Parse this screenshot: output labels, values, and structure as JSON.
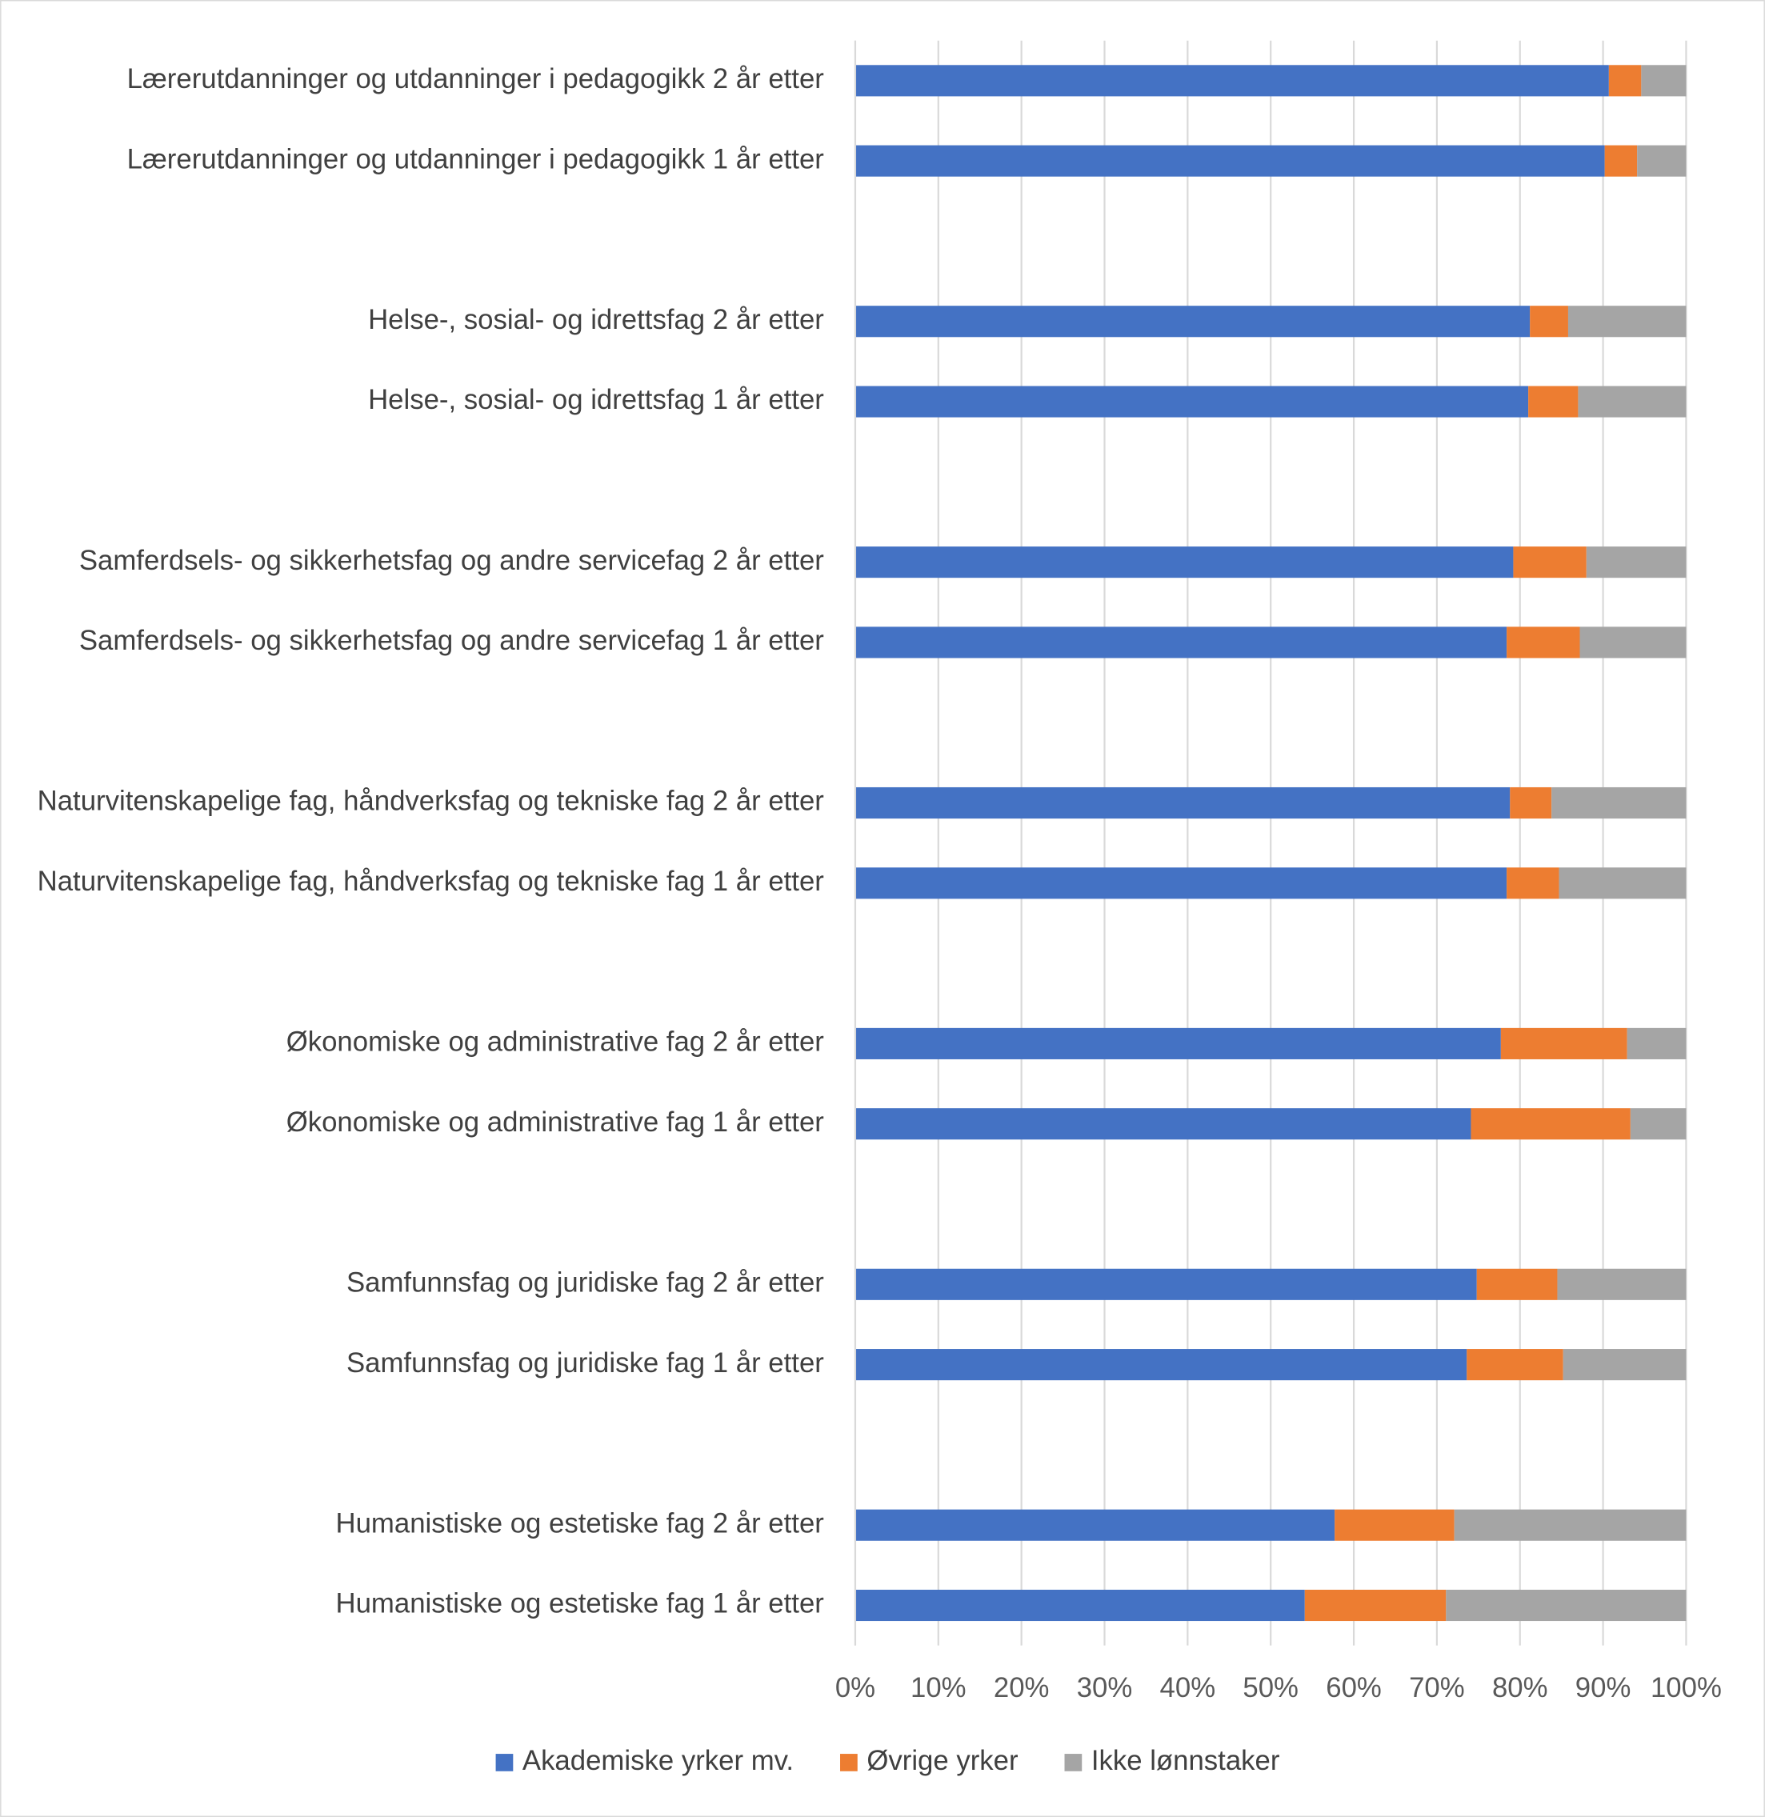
{
  "chart_data": {
    "type": "stacked-bar-horizontal",
    "categories": [
      "Lærerutdanninger og utdanninger i pedagogikk 2 år etter",
      "Lærerutdanninger og utdanninger i pedagogikk 1 år etter",
      null,
      "Helse-, sosial- og idrettsfag 2 år etter",
      "Helse-, sosial- og idrettsfag 1 år etter",
      null,
      "Samferdsels- og sikkerhetsfag og andre servicefag 2 år etter",
      "Samferdsels- og sikkerhetsfag og andre servicefag 1 år etter",
      null,
      "Naturvitenskapelige fag, håndverksfag og tekniske fag 2 år etter",
      "Naturvitenskapelige fag, håndverksfag og tekniske fag 1 år etter",
      null,
      "Økonomiske og administrative fag 2 år etter",
      "Økonomiske og administrative fag 1 år etter",
      null,
      "Samfunnsfag og juridiske fag 2 år etter",
      "Samfunnsfag og juridiske fag 1 år etter",
      null,
      "Humanistiske og estetiske fag 2 år etter",
      "Humanistiske og estetiske fag 1 år etter"
    ],
    "series": [
      {
        "name": "Akademiske yrker mv.",
        "color": "#4472c4",
        "values": [
          90.7,
          90.2,
          null,
          81.2,
          81.0,
          null,
          79.2,
          78.4,
          null,
          78.8,
          78.4,
          null,
          77.7,
          74.1,
          null,
          74.8,
          73.6,
          null,
          57.7,
          54.1
        ]
      },
      {
        "name": "Øvrige yrker",
        "color": "#ed7d31",
        "values": [
          3.9,
          3.9,
          null,
          4.6,
          6.0,
          null,
          8.8,
          8.8,
          null,
          5.0,
          6.3,
          null,
          15.2,
          19.2,
          null,
          9.7,
          11.6,
          null,
          14.4,
          17.0
        ]
      },
      {
        "name": "Ikke lønnstaker",
        "color": "#a5a5a5",
        "values": [
          5.4,
          5.9,
          null,
          14.2,
          13.0,
          null,
          12.0,
          12.8,
          null,
          16.2,
          15.3,
          null,
          7.1,
          6.7,
          null,
          15.5,
          14.8,
          null,
          27.9,
          28.9
        ]
      }
    ],
    "xlim": [
      0,
      100
    ],
    "xticks": [
      {
        "value": 0,
        "label": "0%"
      },
      {
        "value": 10,
        "label": "10%"
      },
      {
        "value": 20,
        "label": "20%"
      },
      {
        "value": 30,
        "label": "30%"
      },
      {
        "value": 40,
        "label": "40%"
      },
      {
        "value": 50,
        "label": "50%"
      },
      {
        "value": 60,
        "label": "60%"
      },
      {
        "value": 70,
        "label": "70%"
      },
      {
        "value": 80,
        "label": "80%"
      },
      {
        "value": 90,
        "label": "90%"
      },
      {
        "value": 100,
        "label": "100%"
      }
    ],
    "grid": true,
    "legend": "bottom"
  }
}
